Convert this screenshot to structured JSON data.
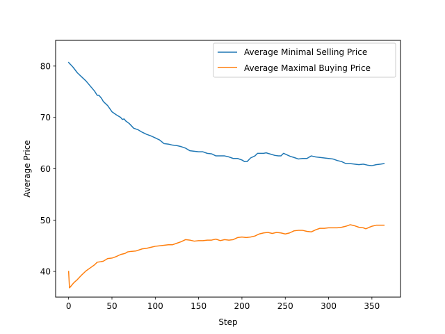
{
  "chart_data": {
    "type": "line",
    "title": "",
    "xlabel": "Step",
    "ylabel": "Average Price",
    "xlim": [
      -15,
      383
    ],
    "ylim": [
      35,
      85
    ],
    "xticks": [
      0,
      50,
      100,
      150,
      200,
      250,
      300,
      350
    ],
    "yticks": [
      40,
      50,
      60,
      70,
      80
    ],
    "grid": false,
    "legend_position": "top-right",
    "series": [
      {
        "name": "Average Minimal Selling Price",
        "color": "#1f77b4",
        "points": [
          [
            0,
            80.7
          ],
          [
            5,
            79.8
          ],
          [
            10,
            78.7
          ],
          [
            15,
            77.9
          ],
          [
            20,
            77.1
          ],
          [
            25,
            76.1
          ],
          [
            30,
            75.1
          ],
          [
            33,
            74.3
          ],
          [
            35,
            74.3
          ],
          [
            38,
            73.7
          ],
          [
            40,
            73.1
          ],
          [
            45,
            72.3
          ],
          [
            50,
            71.1
          ],
          [
            55,
            70.5
          ],
          [
            60,
            70.0
          ],
          [
            62,
            69.6
          ],
          [
            64,
            69.7
          ],
          [
            66,
            69.3
          ],
          [
            70,
            68.8
          ],
          [
            75,
            67.9
          ],
          [
            80,
            67.6
          ],
          [
            85,
            67.1
          ],
          [
            90,
            66.7
          ],
          [
            95,
            66.4
          ],
          [
            100,
            66.0
          ],
          [
            105,
            65.6
          ],
          [
            110,
            64.9
          ],
          [
            115,
            64.8
          ],
          [
            120,
            64.6
          ],
          [
            125,
            64.5
          ],
          [
            130,
            64.3
          ],
          [
            135,
            64.0
          ],
          [
            140,
            63.5
          ],
          [
            145,
            63.4
          ],
          [
            150,
            63.3
          ],
          [
            155,
            63.3
          ],
          [
            160,
            63.0
          ],
          [
            165,
            62.9
          ],
          [
            170,
            62.5
          ],
          [
            175,
            62.5
          ],
          [
            180,
            62.5
          ],
          [
            185,
            62.3
          ],
          [
            190,
            62.0
          ],
          [
            195,
            62.0
          ],
          [
            200,
            61.7
          ],
          [
            203,
            61.4
          ],
          [
            206,
            61.4
          ],
          [
            210,
            62.1
          ],
          [
            215,
            62.5
          ],
          [
            218,
            63.0
          ],
          [
            222,
            63.0
          ],
          [
            225,
            63.0
          ],
          [
            228,
            63.1
          ],
          [
            232,
            62.9
          ],
          [
            238,
            62.6
          ],
          [
            242,
            62.5
          ],
          [
            245,
            62.5
          ],
          [
            248,
            63.0
          ],
          [
            252,
            62.7
          ],
          [
            256,
            62.4
          ],
          [
            260,
            62.2
          ],
          [
            265,
            61.9
          ],
          [
            270,
            62.0
          ],
          [
            275,
            62.0
          ],
          [
            280,
            62.5
          ],
          [
            285,
            62.3
          ],
          [
            290,
            62.2
          ],
          [
            295,
            62.1
          ],
          [
            300,
            62.0
          ],
          [
            305,
            61.9
          ],
          [
            310,
            61.6
          ],
          [
            315,
            61.4
          ],
          [
            320,
            61.0
          ],
          [
            325,
            61.0
          ],
          [
            330,
            60.9
          ],
          [
            335,
            60.8
          ],
          [
            340,
            60.9
          ],
          [
            345,
            60.7
          ],
          [
            350,
            60.6
          ],
          [
            355,
            60.8
          ],
          [
            360,
            60.9
          ],
          [
            364,
            61.0
          ]
        ]
      },
      {
        "name": "Average Maximal Buying Price",
        "color": "#ff7f0e",
        "points": [
          [
            0,
            40.0
          ],
          [
            1,
            36.8
          ],
          [
            3,
            37.2
          ],
          [
            6,
            37.8
          ],
          [
            10,
            38.4
          ],
          [
            15,
            39.3
          ],
          [
            20,
            40.1
          ],
          [
            25,
            40.7
          ],
          [
            30,
            41.3
          ],
          [
            33,
            41.8
          ],
          [
            37,
            41.9
          ],
          [
            40,
            42.0
          ],
          [
            45,
            42.5
          ],
          [
            50,
            42.6
          ],
          [
            55,
            42.9
          ],
          [
            60,
            43.3
          ],
          [
            65,
            43.5
          ],
          [
            68,
            43.8
          ],
          [
            72,
            43.9
          ],
          [
            78,
            44.0
          ],
          [
            85,
            44.4
          ],
          [
            90,
            44.5
          ],
          [
            95,
            44.7
          ],
          [
            100,
            44.9
          ],
          [
            105,
            45.0
          ],
          [
            110,
            45.1
          ],
          [
            115,
            45.2
          ],
          [
            120,
            45.2
          ],
          [
            125,
            45.5
          ],
          [
            130,
            45.8
          ],
          [
            135,
            46.2
          ],
          [
            140,
            46.1
          ],
          [
            145,
            45.9
          ],
          [
            150,
            46.0
          ],
          [
            155,
            46.0
          ],
          [
            160,
            46.1
          ],
          [
            165,
            46.1
          ],
          [
            170,
            46.3
          ],
          [
            175,
            46.0
          ],
          [
            180,
            46.2
          ],
          [
            185,
            46.1
          ],
          [
            190,
            46.2
          ],
          [
            195,
            46.6
          ],
          [
            200,
            46.7
          ],
          [
            205,
            46.6
          ],
          [
            210,
            46.7
          ],
          [
            215,
            46.9
          ],
          [
            220,
            47.3
          ],
          [
            225,
            47.5
          ],
          [
            230,
            47.6
          ],
          [
            235,
            47.4
          ],
          [
            240,
            47.6
          ],
          [
            245,
            47.5
          ],
          [
            250,
            47.3
          ],
          [
            255,
            47.5
          ],
          [
            260,
            47.9
          ],
          [
            265,
            48.0
          ],
          [
            270,
            48.0
          ],
          [
            275,
            47.8
          ],
          [
            280,
            47.7
          ],
          [
            285,
            48.1
          ],
          [
            290,
            48.4
          ],
          [
            295,
            48.4
          ],
          [
            300,
            48.5
          ],
          [
            305,
            48.5
          ],
          [
            310,
            48.5
          ],
          [
            315,
            48.6
          ],
          [
            320,
            48.8
          ],
          [
            325,
            49.1
          ],
          [
            330,
            48.9
          ],
          [
            335,
            48.6
          ],
          [
            340,
            48.5
          ],
          [
            343,
            48.3
          ],
          [
            347,
            48.6
          ],
          [
            350,
            48.8
          ],
          [
            355,
            49.0
          ],
          [
            360,
            49.0
          ],
          [
            364,
            49.0
          ]
        ]
      }
    ]
  }
}
